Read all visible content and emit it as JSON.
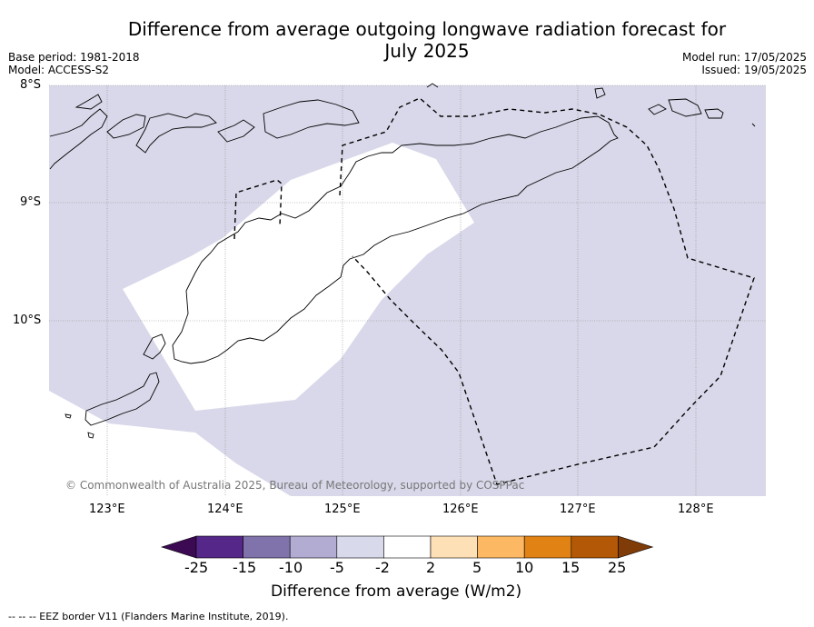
{
  "header": {
    "title_line1": "Difference from average outgoing longwave radiation forecast for",
    "title_line2": "July 2025",
    "base_period": "Base period: 1981-2018",
    "model": "Model: ACCESS-S2",
    "model_run": "Model run: 17/05/2025",
    "issued": "Issued: 19/05/2025"
  },
  "map": {
    "latitudes": [
      "8°S",
      "9°S",
      "10°S"
    ],
    "longitudes": [
      "123°E",
      "124°E",
      "125°E",
      "126°E",
      "127°E",
      "128°E"
    ],
    "copyright": "© Commonwealth of Australia 2025, Bureau of Meteorology, supported by COSPPac",
    "fill_colors": {
      "below_minus2": "#d8d8ea",
      "neutral": "#ffffff"
    }
  },
  "colorbar": {
    "ticks": [
      "-25",
      "-15",
      "-10",
      "-5",
      "-2",
      "2",
      "5",
      "10",
      "15",
      "25"
    ],
    "colors": [
      "#3b0a52",
      "#542788",
      "#8073ac",
      "#b2abd2",
      "#d8daeb",
      "#ffffff",
      "#fee0b6",
      "#fdb863",
      "#e08214",
      "#b35806",
      "#7f3b08"
    ],
    "title": "Difference from average (W/m2)"
  },
  "footnote": "--  --  -- EEZ border V11 (Flanders Marine Institute, 2019)."
}
